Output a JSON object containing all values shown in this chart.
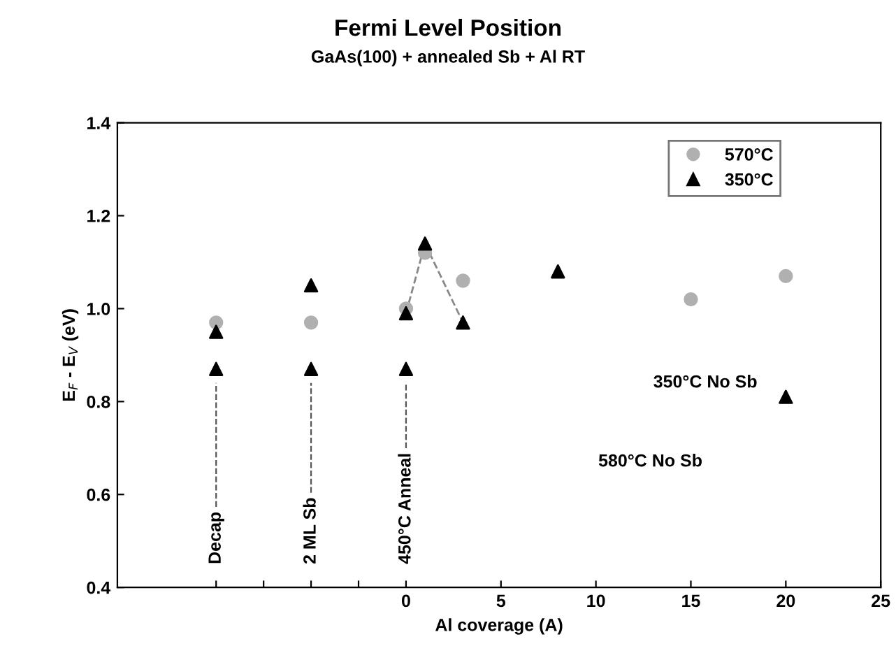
{
  "chart_data": {
    "type": "scatter",
    "title": "Fermi Level Position",
    "subtitle": "GaAs(100) + annealed Sb + Al RT",
    "xlabel": "Al coverage (A)",
    "ylabel": "E$_{F}$ - E$_{V}$ (eV)",
    "xlim": [
      -15.2,
      25
    ],
    "ylim": [
      0.4,
      1.4
    ],
    "xticks": [
      {
        "value": -10,
        "label": null
      },
      {
        "value": -7.5,
        "label": null
      },
      {
        "value": -5,
        "label": null
      },
      {
        "value": -2.5,
        "label": null
      },
      0,
      5,
      10,
      15,
      20,
      25
    ],
    "yticks": [
      {
        "value": 0.4,
        "label": "0.4"
      },
      {
        "value": 0.6,
        "label": "0.6"
      },
      {
        "value": 0.8,
        "label": "0.8"
      },
      {
        "value": 1.0,
        "label": "1.0"
      },
      {
        "value": 1.2,
        "label": "1.2"
      },
      {
        "value": 1.4,
        "label": "1.4"
      }
    ],
    "series": [
      {
        "name": "570°C",
        "marker": "circle",
        "color": "#b0b0b0",
        "x": [
          -10,
          -5,
          0,
          1,
          3,
          15,
          20
        ],
        "values": [
          0.97,
          0.97,
          1.0,
          1.12,
          1.06,
          1.02,
          1.07
        ]
      },
      {
        "name": "350°C",
        "marker": "triangle",
        "color": "#000000",
        "x": [
          -10,
          -10,
          -5,
          -5,
          0,
          0,
          1,
          3,
          8
        ],
        "values": [
          0.95,
          0.87,
          1.05,
          0.87,
          0.99,
          0.87,
          1.14,
          0.97,
          1.08
        ]
      },
      {
        "type": "line",
        "marker": "none",
        "line_style": "dashed",
        "color": "#888888",
        "x": [
          0,
          1,
          3
        ],
        "values": [
          0.99,
          1.14,
          0.97
        ]
      },
      {
        "name": "350°C No Sb",
        "marker": "triangle",
        "color": "#000000",
        "x": [
          20
        ],
        "values": [
          0.81
        ]
      }
    ],
    "annotations": [
      "Decap",
      "2 ML Sb",
      "450°C Anneal",
      "580°C No Sb"
    ],
    "legend": "top right",
    "grid": false
  }
}
